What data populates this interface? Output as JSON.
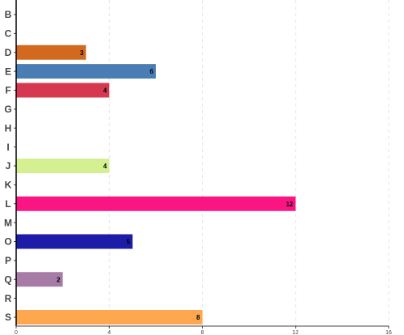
{
  "chart_data": {
    "type": "bar",
    "orientation": "horizontal",
    "categories": [
      "B",
      "C",
      "D",
      "E",
      "F",
      "G",
      "H",
      "I",
      "J",
      "K",
      "L",
      "M",
      "O",
      "P",
      "Q",
      "R",
      "S"
    ],
    "values": [
      0,
      0,
      3,
      6,
      4,
      0,
      0,
      0,
      4,
      0,
      12,
      0,
      5,
      0,
      2,
      0,
      8
    ],
    "colors": [
      "#888888",
      "#888888",
      "#d2691e",
      "#4a7db3",
      "#d6394f",
      "#888888",
      "#888888",
      "#888888",
      "#d4f090",
      "#888888",
      "#fa1583",
      "#888888",
      "#1c1ca8",
      "#888888",
      "#a67ba6",
      "#888888",
      "#ffa74f"
    ],
    "xlim": [
      0,
      16
    ],
    "xticks": [
      0,
      4,
      8,
      12,
      16
    ],
    "grid": true
  }
}
